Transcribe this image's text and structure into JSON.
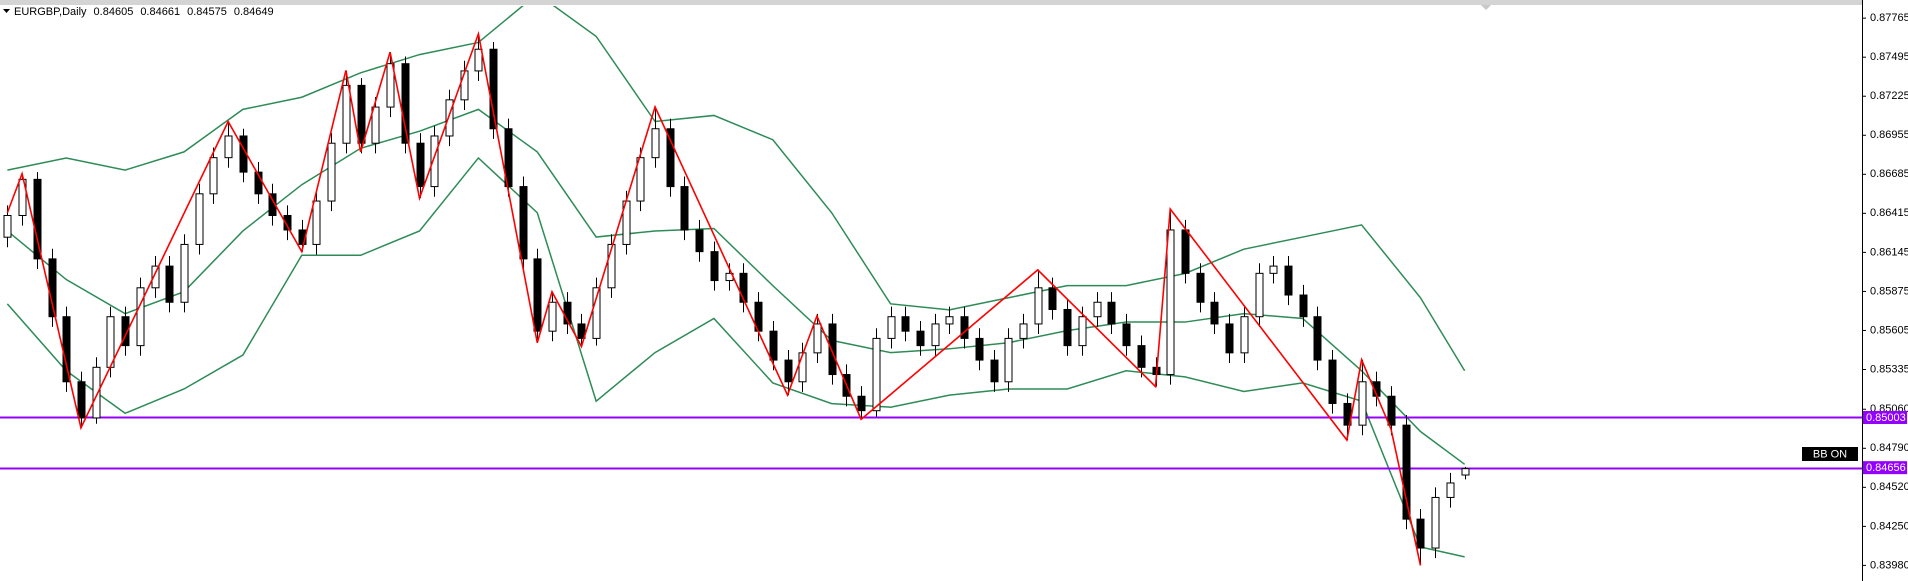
{
  "chart_data": {
    "type": "candlestick",
    "symbol": "EURGBP,Daily",
    "badge": "BB ON",
    "up_color": "#ffffff",
    "down_color": "#000000",
    "wick_color": "#000000",
    "open": [
      0.8625,
      0.864,
      0.8665,
      0.861,
      0.857,
      0.8525,
      0.85,
      0.8535,
      0.857,
      0.855,
      0.859,
      0.8605,
      0.858,
      0.862,
      0.8655,
      0.868,
      0.8695,
      0.867,
      0.8655,
      0.864,
      0.863,
      0.862,
      0.865,
      0.869,
      0.873,
      0.869,
      0.8715,
      0.8745,
      0.869,
      0.866,
      0.8695,
      0.872,
      0.874,
      0.8755,
      0.87,
      0.866,
      0.861,
      0.856,
      0.858,
      0.8565,
      0.8555,
      0.859,
      0.862,
      0.865,
      0.868,
      0.87,
      0.866,
      0.863,
      0.8615,
      0.8595,
      0.86,
      0.858,
      0.856,
      0.854,
      0.8525,
      0.8545,
      0.8565,
      0.853,
      0.8515,
      0.8505,
      0.8555,
      0.857,
      0.856,
      0.855,
      0.8565,
      0.857,
      0.8555,
      0.854,
      0.8525,
      0.8555,
      0.8565,
      0.859,
      0.8575,
      0.855,
      0.857,
      0.858,
      0.8565,
      0.855,
      0.8535,
      0.853,
      0.863,
      0.86,
      0.858,
      0.8565,
      0.8545,
      0.857,
      0.86,
      0.8605,
      0.8585,
      0.857,
      0.854,
      0.851,
      0.8495,
      0.8525,
      0.8515,
      0.8495,
      0.843,
      0.841,
      0.8445,
      0.84605
    ],
    "high": [
      0.8647,
      0.86689,
      0.867,
      0.8617,
      0.8577,
      0.8532,
      0.8542,
      0.8577,
      0.8577,
      0.8597,
      0.8612,
      0.8612,
      0.8627,
      0.8662,
      0.8687,
      0.8705,
      0.87,
      0.8677,
      0.8662,
      0.8647,
      0.8637,
      0.8657,
      0.8697,
      0.87403,
      0.8735,
      0.8722,
      0.8753,
      0.875,
      0.8697,
      0.8702,
      0.8727,
      0.8747,
      0.87656,
      0.876,
      0.8707,
      0.8667,
      0.8617,
      0.85873,
      0.8587,
      0.8572,
      0.8597,
      0.8627,
      0.8657,
      0.8687,
      0.87151,
      0.8707,
      0.8667,
      0.8637,
      0.8622,
      0.8607,
      0.8607,
      0.8587,
      0.8567,
      0.8547,
      0.8552,
      0.8572,
      0.8572,
      0.8537,
      0.8522,
      0.8562,
      0.8577,
      0.8577,
      0.8567,
      0.8572,
      0.8577,
      0.8577,
      0.8562,
      0.8547,
      0.8562,
      0.8572,
      0.86024,
      0.8597,
      0.8582,
      0.8577,
      0.8587,
      0.8587,
      0.8572,
      0.8557,
      0.8542,
      0.86445,
      0.8637,
      0.8607,
      0.8587,
      0.8572,
      0.8577,
      0.8607,
      0.8612,
      0.8612,
      0.8592,
      0.8577,
      0.8547,
      0.8517,
      0.85402,
      0.8532,
      0.8522,
      0.8502,
      0.8437,
      0.8452,
      0.8462,
      0.84661
    ],
    "low": [
      0.8618,
      0.8633,
      0.8603,
      0.8563,
      0.8518,
      0.84931,
      0.8496,
      0.8528,
      0.8543,
      0.8543,
      0.8583,
      0.8573,
      0.8573,
      0.8613,
      0.8648,
      0.8673,
      0.8663,
      0.8648,
      0.8633,
      0.8623,
      0.8615,
      0.8613,
      0.8643,
      0.8683,
      0.8683,
      0.8683,
      0.8708,
      0.8683,
      0.8652,
      0.8653,
      0.8688,
      0.8713,
      0.8733,
      0.8693,
      0.8653,
      0.8603,
      0.8552,
      0.8553,
      0.8558,
      0.85494,
      0.855,
      0.8583,
      0.8613,
      0.8643,
      0.8673,
      0.8653,
      0.8623,
      0.8608,
      0.8588,
      0.8588,
      0.8573,
      0.8553,
      0.8533,
      0.85158,
      0.8518,
      0.8538,
      0.8523,
      0.8508,
      0.8499,
      0.8501,
      0.8548,
      0.8553,
      0.8543,
      0.8543,
      0.8558,
      0.8548,
      0.8533,
      0.8518,
      0.8518,
      0.8548,
      0.8558,
      0.8568,
      0.8543,
      0.8543,
      0.8563,
      0.8558,
      0.8543,
      0.8528,
      0.85217,
      0.8523,
      0.8593,
      0.8573,
      0.8558,
      0.8538,
      0.8538,
      0.8563,
      0.8593,
      0.8578,
      0.8563,
      0.8533,
      0.8503,
      0.84847,
      0.8488,
      0.8508,
      0.8488,
      0.8423,
      0.8398,
      0.8403,
      0.8438,
      0.84575
    ],
    "close": [
      0.864,
      0.8665,
      0.861,
      0.857,
      0.8525,
      0.85,
      0.8535,
      0.857,
      0.855,
      0.859,
      0.8605,
      0.858,
      0.862,
      0.8655,
      0.868,
      0.8695,
      0.867,
      0.8655,
      0.864,
      0.863,
      0.862,
      0.865,
      0.869,
      0.873,
      0.869,
      0.8715,
      0.8745,
      0.869,
      0.866,
      0.8695,
      0.872,
      0.874,
      0.8755,
      0.87,
      0.866,
      0.861,
      0.856,
      0.858,
      0.8565,
      0.8555,
      0.859,
      0.862,
      0.865,
      0.868,
      0.87,
      0.866,
      0.863,
      0.8615,
      0.8595,
      0.86,
      0.858,
      0.856,
      0.854,
      0.8525,
      0.8545,
      0.8565,
      0.853,
      0.8515,
      0.8505,
      0.8555,
      0.857,
      0.856,
      0.855,
      0.8565,
      0.857,
      0.8555,
      0.854,
      0.8525,
      0.8555,
      0.8565,
      0.859,
      0.8575,
      0.855,
      0.857,
      0.858,
      0.8565,
      0.855,
      0.8535,
      0.853,
      0.863,
      0.86,
      0.858,
      0.8565,
      0.8545,
      0.857,
      0.86,
      0.8605,
      0.8585,
      0.857,
      0.854,
      0.851,
      0.8495,
      0.8525,
      0.8515,
      0.8495,
      0.843,
      0.841,
      0.8445,
      0.8455,
      0.84649
    ],
    "bands": {
      "color": "#2e8b57",
      "x": [
        0,
        4,
        8,
        12,
        16,
        20,
        24,
        28,
        32,
        36,
        40,
        44,
        48,
        52,
        56,
        60,
        64,
        68,
        72,
        76,
        80,
        84,
        88,
        92,
        96,
        99
      ],
      "upper": [
        0.86714,
        0.86798,
        0.86714,
        0.8684,
        0.87134,
        0.87218,
        0.87387,
        0.87513,
        0.87597,
        0.87933,
        0.87639,
        0.8705,
        0.87092,
        0.86924,
        0.86419,
        0.85789,
        0.85747,
        0.85831,
        0.85915,
        0.85915,
        0.85999,
        0.86167,
        0.86251,
        0.86335,
        0.85831,
        0.85326
      ],
      "middle": [
        0.86293,
        0.85957,
        0.85721,
        0.85873,
        0.86293,
        0.86613,
        0.86865,
        0.86983,
        0.87134,
        0.8684,
        0.86251,
        0.86293,
        0.8631,
        0.85915,
        0.85536,
        0.85452,
        0.85478,
        0.8552,
        0.85604,
        0.85663,
        0.85663,
        0.85721,
        0.85688,
        0.85326,
        0.84906,
        0.84679
      ],
      "lower": [
        0.85789,
        0.85326,
        0.85032,
        0.852,
        0.85435,
        0.86125,
        0.86125,
        0.86293,
        0.86798,
        0.86419,
        0.85116,
        0.85452,
        0.85688,
        0.85242,
        0.85099,
        0.85074,
        0.85158,
        0.852,
        0.852,
        0.85326,
        0.85284,
        0.85183,
        0.85242,
        0.85116,
        0.84107,
        0.84039
      ]
    },
    "zigzag": {
      "color": "#ff0000",
      "x": [
        0,
        1,
        5,
        15,
        20,
        23,
        24,
        26,
        28,
        32,
        36,
        37,
        39,
        44,
        53,
        55,
        58,
        70,
        78,
        79,
        91,
        92,
        94,
        96
      ],
      "values": [
        0.86419,
        0.86689,
        0.84931,
        0.8705,
        0.8615,
        0.87403,
        0.8684,
        0.8753,
        0.8652,
        0.87656,
        0.8552,
        0.85873,
        0.85494,
        0.87151,
        0.85158,
        0.85705,
        0.8499,
        0.86024,
        0.85217,
        0.86445,
        0.84847,
        0.85402,
        0.84922,
        0.8398
      ]
    },
    "levels": [
      0.85003,
      0.84656
    ],
    "level_color": "#9400ff",
    "ylim": [
      0.83879,
      0.87849
    ],
    "yticks": [
      0.87765,
      0.87495,
      0.87225,
      0.86955,
      0.86685,
      0.86415,
      0.86145,
      0.85875,
      0.85605,
      0.85335,
      {
        "value": 0.8506,
        "label": "0.85060"
      },
      {
        "value": 0.8479,
        "label": "0.84790"
      },
      {
        "value": 0.8452,
        "label": "0.84520"
      },
      {
        "value": 0.8425,
        "label": "0.84250"
      },
      {
        "value": 0.8398,
        "label": "0.83980"
      }
    ]
  }
}
